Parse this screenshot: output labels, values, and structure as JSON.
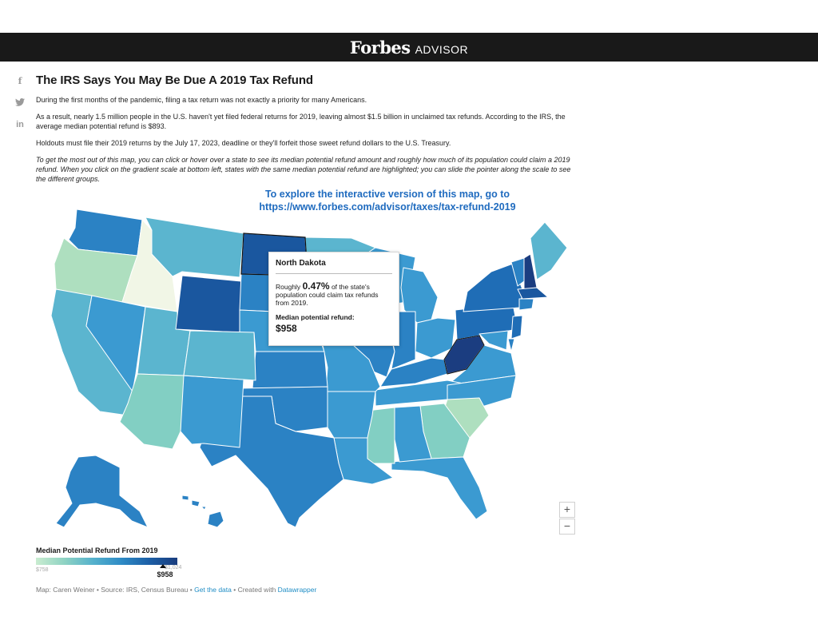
{
  "header": {
    "brand_main": "Forbes",
    "brand_sub": "ADVISOR"
  },
  "social": {
    "facebook": "f",
    "linkedin": "in"
  },
  "article": {
    "title": "The IRS Says You May Be Due A 2019 Tax Refund",
    "paragraphs": [
      "During the first months of the pandemic, filing a tax return was not exactly a priority for many Americans.",
      "As a result, nearly 1.5 million people in the U.S. haven't yet filed federal returns for 2019, leaving almost $1.5 billion in unclaimed tax refunds. According to the IRS, the average median potential refund is $893.",
      "Holdouts must file their 2019 returns by the July 17, 2023, deadline or they'll forfeit those sweet refund dollars to the U.S. Treasury."
    ],
    "instructions": "To get the most out of this map, you can click or hover over a state to see its median potential refund amount and roughly how much of its population could claim a 2019 refund. When you click on the gradient scale at bottom left, states with the same median potential refund are highlighted; you can slide the pointer along the scale to see the different groups."
  },
  "explore": {
    "line1": "To explore the interactive version of this map, go to",
    "line2": "https://www.forbes.com/advisor/taxes/tax-refund-2019"
  },
  "tooltip": {
    "state": "North Dakota",
    "text_before": "Roughly ",
    "percent": "0.47%",
    "text_after": " of the state's population could claim tax refunds from 2019.",
    "refund_label": "Median potential refund:",
    "refund_value": "$958"
  },
  "zoom": {
    "in": "+",
    "out": "−"
  },
  "legend": {
    "title": "Median Potential Refund From 2019",
    "min": "$758",
    "max": "$1,024",
    "current": "$958",
    "current_fraction": 0.76
  },
  "footer": {
    "prefix": "Map: Caren Weiner • Source: IRS, Census Bureau • ",
    "data_link": "Get the data",
    "middle": " • Created with ",
    "dw_link": "Datawrapper"
  },
  "colors": {
    "c1": "#f1f6e6",
    "c2": "#aedfbf",
    "c3": "#82cfc3",
    "c4": "#5bb5cf",
    "c5": "#3b9ad1",
    "c6": "#2b82c4",
    "c7": "#1f6db6",
    "c8": "#1a579f",
    "c9": "#1b3d80"
  },
  "states": [
    {
      "id": "WA",
      "color": "c6"
    },
    {
      "id": "OR",
      "color": "c2"
    },
    {
      "id": "ID",
      "color": "c1"
    },
    {
      "id": "MT",
      "color": "c4"
    },
    {
      "id": "ND",
      "color": "c8"
    },
    {
      "id": "MN",
      "color": "c4"
    },
    {
      "id": "WI",
      "color": "c5"
    },
    {
      "id": "MI",
      "color": "c5"
    },
    {
      "id": "CA",
      "color": "c4"
    },
    {
      "id": "NV",
      "color": "c5"
    },
    {
      "id": "UT",
      "color": "c4"
    },
    {
      "id": "WY",
      "color": "c8"
    },
    {
      "id": "SD",
      "color": "c6"
    },
    {
      "id": "NE",
      "color": "c5"
    },
    {
      "id": "IA",
      "color": "c5"
    },
    {
      "id": "IL",
      "color": "c6"
    },
    {
      "id": "IN",
      "color": "c6"
    },
    {
      "id": "OH",
      "color": "c5"
    },
    {
      "id": "PA",
      "color": "c7"
    },
    {
      "id": "NY",
      "color": "c7"
    },
    {
      "id": "VT",
      "color": "c6"
    },
    {
      "id": "NH",
      "color": "c9"
    },
    {
      "id": "ME",
      "color": "c4"
    },
    {
      "id": "MA",
      "color": "c8"
    },
    {
      "id": "CT",
      "color": "c6"
    },
    {
      "id": "NJ",
      "color": "c7"
    },
    {
      "id": "DE",
      "color": "c6"
    },
    {
      "id": "MD",
      "color": "c5"
    },
    {
      "id": "WV",
      "color": "c9"
    },
    {
      "id": "VA",
      "color": "c5"
    },
    {
      "id": "KY",
      "color": "c6"
    },
    {
      "id": "TN",
      "color": "c5"
    },
    {
      "id": "NC",
      "color": "c5"
    },
    {
      "id": "SC",
      "color": "c2"
    },
    {
      "id": "GA",
      "color": "c3"
    },
    {
      "id": "FL",
      "color": "c5"
    },
    {
      "id": "AL",
      "color": "c5"
    },
    {
      "id": "MS",
      "color": "c3"
    },
    {
      "id": "LA",
      "color": "c5"
    },
    {
      "id": "AR",
      "color": "c5"
    },
    {
      "id": "MO",
      "color": "c5"
    },
    {
      "id": "KS",
      "color": "c6"
    },
    {
      "id": "OK",
      "color": "c6"
    },
    {
      "id": "TX",
      "color": "c6"
    },
    {
      "id": "NM",
      "color": "c5"
    },
    {
      "id": "AZ",
      "color": "c3"
    },
    {
      "id": "CO",
      "color": "c4"
    },
    {
      "id": "AK",
      "color": "c6"
    },
    {
      "id": "HI",
      "color": "c6"
    }
  ]
}
